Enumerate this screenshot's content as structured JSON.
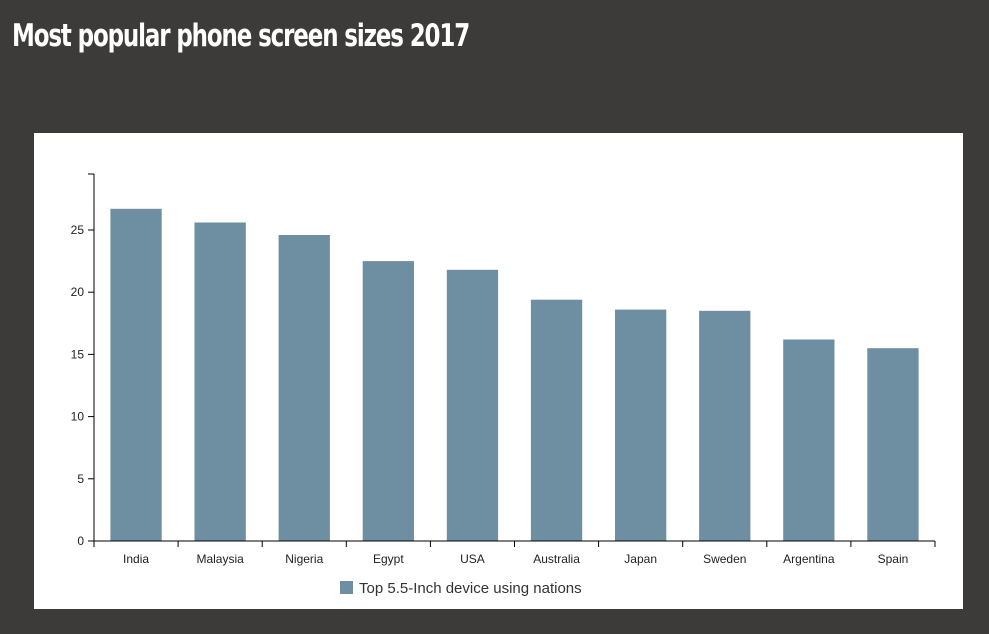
{
  "page": {
    "title": "Most popular phone screen sizes 2017"
  },
  "colors": {
    "background": "#3d3b39",
    "card": "#ffffff",
    "bar": "#6e8fa1",
    "axis": "#000000",
    "tick_text": "#222222"
  },
  "chart_data": {
    "type": "bar",
    "categories": [
      "India",
      "Malaysia",
      "Nigeria",
      "Egypt",
      "USA",
      "Australia",
      "Japan",
      "Sweden",
      "Argentina",
      "Spain"
    ],
    "series": [
      {
        "name": "Top 5.5-Inch device using nations",
        "values": [
          26.7,
          25.6,
          24.6,
          22.5,
          21.8,
          19.4,
          18.6,
          18.5,
          16.2,
          15.5
        ]
      }
    ],
    "yticks": [
      0,
      5,
      10,
      15,
      20,
      25
    ],
    "ylim": [
      0,
      29.5
    ],
    "grid": false,
    "legend": "bottom-center"
  }
}
